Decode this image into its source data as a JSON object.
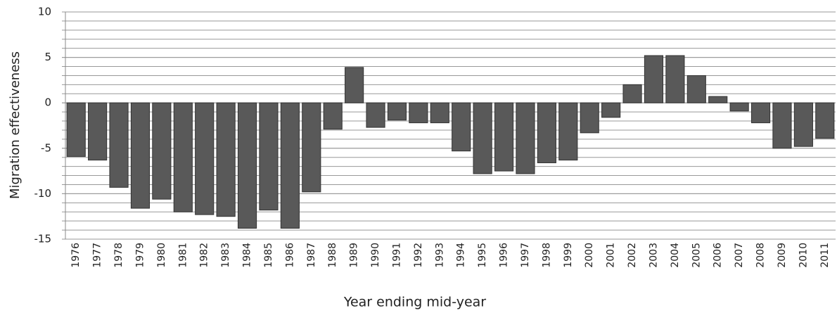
{
  "chart_data": {
    "type": "bar",
    "x_label": "Year ending mid-year",
    "y_label": "Migration effectiveness",
    "categories": [
      "1976",
      "1977",
      "1978",
      "1979",
      "1980",
      "1981",
      "1982",
      "1983",
      "1984",
      "1985",
      "1986",
      "1987",
      "1988",
      "1989",
      "1990",
      "1991",
      "1992",
      "1993",
      "1994",
      "1995",
      "1996",
      "1997",
      "1998",
      "1999",
      "2000",
      "2001",
      "2002",
      "2003",
      "2004",
      "2005",
      "2006",
      "2007",
      "2008",
      "2009",
      "2010",
      "2011"
    ],
    "values": [
      -5.9,
      -6.3,
      -9.3,
      -11.6,
      -10.6,
      -12.0,
      -12.3,
      -12.5,
      -13.8,
      -11.8,
      -13.8,
      -9.8,
      -2.9,
      3.9,
      -2.7,
      -1.9,
      -2.2,
      -2.2,
      -5.3,
      -7.8,
      -7.5,
      -7.8,
      -6.6,
      -6.3,
      -3.3,
      -1.6,
      2.0,
      5.2,
      5.2,
      3.0,
      0.7,
      -0.9,
      -2.2,
      -5.0,
      -4.8,
      -3.9
    ],
    "color": "#595959",
    "ylim": [
      -15,
      10
    ],
    "yticks": [
      -15,
      -10,
      -5,
      0,
      5,
      10
    ],
    "grid": true,
    "minor_grid_step": 1
  }
}
